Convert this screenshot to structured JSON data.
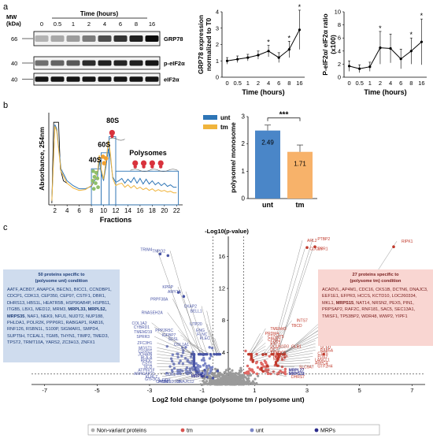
{
  "panel_labels": {
    "a": "a",
    "b": "b",
    "c": "c"
  },
  "western": {
    "mw_label": "MW\n(kDa)",
    "time_title": "Time (hours)",
    "time_points": [
      "0",
      "0.5",
      "1",
      "2",
      "4",
      "6",
      "8",
      "16"
    ],
    "bands": [
      {
        "mw": "66",
        "protein": "GRP78",
        "intensity": [
          0.25,
          0.3,
          0.35,
          0.5,
          0.7,
          0.82,
          0.9,
          1.0
        ]
      },
      {
        "mw": "40",
        "protein": "p-eIF2α",
        "intensity": [
          0.55,
          0.6,
          0.65,
          0.85,
          0.9,
          0.88,
          0.9,
          0.95
        ]
      },
      {
        "mw": "40",
        "protein": "eIF2α",
        "intensity": [
          0.95,
          0.95,
          0.95,
          0.95,
          0.95,
          0.95,
          0.95,
          0.95
        ]
      }
    ]
  },
  "chart_data": [
    {
      "type": "line",
      "ylabel": "GRP78 expression\nnormalized to T0",
      "xlabel": "Time (hours)",
      "categories": [
        "0",
        "0.5",
        "1",
        "2",
        "4",
        "6",
        "8",
        "16"
      ],
      "values": [
        1.0,
        1.1,
        1.2,
        1.35,
        1.6,
        1.2,
        1.7,
        2.9
      ],
      "errors": [
        0.2,
        0.2,
        0.2,
        0.25,
        0.35,
        0.3,
        0.5,
        1.2
      ],
      "significant": [
        false,
        false,
        false,
        false,
        true,
        false,
        true,
        true
      ],
      "yticks": [
        "0",
        "1",
        "2",
        "3",
        "4"
      ],
      "ylim": [
        0,
        4
      ]
    },
    {
      "type": "line",
      "ylabel": "P-eIF2α/ eIF2α ratio\n(x100)",
      "xlabel": "Time (hours)",
      "categories": [
        "0",
        "0.5",
        "1",
        "2",
        "4",
        "6",
        "8",
        "16"
      ],
      "values": [
        1.7,
        1.3,
        1.6,
        4.5,
        4.4,
        2.8,
        4.0,
        5.4
      ],
      "errors": [
        0.8,
        0.6,
        0.7,
        2.5,
        2.2,
        1.5,
        2.0,
        3.5
      ],
      "significant": [
        false,
        false,
        false,
        true,
        false,
        false,
        true,
        true
      ],
      "yticks": [
        "0",
        "2",
        "4",
        "6",
        "8",
        "10"
      ],
      "ylim": [
        0,
        10
      ]
    },
    {
      "type": "line",
      "ylabel": "Absorbance, 254nm",
      "xlabel": "Fractions",
      "xticks": [
        "2",
        "4",
        "6",
        "8",
        "10",
        "12",
        "14",
        "16",
        "18",
        "20",
        "22"
      ],
      "xlim": [
        1,
        23
      ],
      "ylim": [
        0,
        1.15
      ],
      "series": [
        {
          "name": "unt",
          "color": "#2e75b6",
          "x": [
            1.5,
            2,
            2.3,
            3,
            4,
            5,
            6,
            7,
            8,
            8.5,
            9,
            9.3,
            9.6,
            10,
            10.4,
            10.8,
            11.1,
            11.5,
            12,
            12.5,
            13,
            13.5,
            14,
            14.5,
            15,
            15.5,
            16,
            16.5,
            17,
            17.5,
            18,
            18.5,
            19,
            19.5,
            20,
            20.5,
            21,
            21.5,
            22
          ],
          "y": [
            0.05,
            1.0,
            0.95,
            0.45,
            0.3,
            0.24,
            0.2,
            0.2,
            0.23,
            0.3,
            0.35,
            0.55,
            0.4,
            0.3,
            0.48,
            0.7,
            0.6,
            0.35,
            0.28,
            0.3,
            0.33,
            0.27,
            0.32,
            0.28,
            0.34,
            0.27,
            0.33,
            0.26,
            0.32,
            0.26,
            0.3,
            0.25,
            0.28,
            0.24,
            0.27,
            0.23,
            0.25,
            0.22,
            0.22
          ]
        },
        {
          "name": "tm",
          "color": "#f0b43c",
          "x": [
            1.5,
            2,
            2.3,
            3,
            4,
            5,
            6,
            7,
            8,
            8.5,
            9,
            9.3,
            9.6,
            10,
            10.4,
            10.8,
            11.1,
            11.5,
            12,
            12.5,
            13,
            13.5,
            14,
            14.5,
            15,
            15.5,
            16,
            16.5,
            17,
            17.5,
            18,
            18.5,
            19,
            19.5,
            20,
            20.5,
            21,
            21.5,
            22
          ],
          "y": [
            0.05,
            0.98,
            0.92,
            0.42,
            0.27,
            0.21,
            0.18,
            0.19,
            0.24,
            0.32,
            0.4,
            0.62,
            0.45,
            0.32,
            0.55,
            0.8,
            0.66,
            0.33,
            0.24,
            0.26,
            0.27,
            0.22,
            0.25,
            0.21,
            0.24,
            0.2,
            0.22,
            0.19,
            0.21,
            0.18,
            0.2,
            0.17,
            0.19,
            0.17,
            0.18,
            0.16,
            0.17,
            0.15,
            0.15
          ]
        }
      ],
      "annotations": [
        "40S",
        "60S",
        "80S",
        "Polysomes"
      ]
    },
    {
      "type": "bar",
      "ylabel": "polysome/ monosome",
      "categories": [
        "unt",
        "tm"
      ],
      "values": [
        2.49,
        1.71
      ],
      "value_labels": [
        "2.49",
        "1.71"
      ],
      "errors": [
        0.2,
        0.25
      ],
      "colors": [
        "#4a86c8",
        "#f7b26a"
      ],
      "significance": "***",
      "yticks": [
        "0",
        "1",
        "2",
        "3"
      ],
      "ylim": [
        0,
        3
      ]
    },
    {
      "type": "scatter",
      "xlabel": "Log2 fold change (polysome tm / polysome unt)",
      "ylabel": "-Log10(p-value)",
      "xticks": [
        "-7",
        "-5",
        "-3",
        "-1",
        "1",
        "3",
        "5",
        "7"
      ],
      "yticks": [
        "4",
        "8",
        "12",
        "16"
      ],
      "xlim": [
        -7.5,
        7.5
      ],
      "ylim": [
        0,
        18.5
      ],
      "legend": [
        {
          "name": "Non-variant proteins",
          "color": "#b0b0b0"
        },
        {
          "name": "tm",
          "color": "#d9534f"
        },
        {
          "name": "unt",
          "color": "#7b86c6"
        },
        {
          "name": "MRPs",
          "color": "#2b2b8c"
        }
      ],
      "labeled_points_unt": [
        {
          "label": "TRIM4",
          "x": -2.9,
          "y": 16.5
        },
        {
          "label": "TNPO2",
          "x": -2.4,
          "y": 16.3
        },
        {
          "label": "KPRP",
          "x": -2.1,
          "y": 11.8
        },
        {
          "label": "AMY1A",
          "x": -1.8,
          "y": 11.2
        },
        {
          "label": "PRPF38A",
          "x": -2.3,
          "y": 10.3
        },
        {
          "label": "CKAP2",
          "x": -1.2,
          "y": 9.4
        },
        {
          "label": "RNASEH2A",
          "x": -2.5,
          "y": 8.6
        },
        {
          "label": "BELL1",
          "x": -1.0,
          "y": 8.8
        },
        {
          "label": "COL1A2",
          "x": -3.1,
          "y": 7.3
        },
        {
          "label": "UTP20",
          "x": -1.0,
          "y": 7.2
        },
        {
          "label": "CYBRD1",
          "x": -3.0,
          "y": 6.8
        },
        {
          "label": "PPP2R5C",
          "x": -2.1,
          "y": 6.4
        },
        {
          "label": "TMEM219",
          "x": -2.9,
          "y": 6.2
        },
        {
          "label": "IGFBP7",
          "x": -2.0,
          "y": 5.8
        },
        {
          "label": "SPRR3",
          "x": -3.0,
          "y": 5.6
        },
        {
          "label": "SDSL",
          "x": -1.9,
          "y": 5.3
        },
        {
          "label": "ZFC3H1",
          "x": -2.9,
          "y": 4.8
        },
        {
          "label": "COL1A1",
          "x": -1.5,
          "y": 4.6
        },
        {
          "label": "MGST1",
          "x": -2.9,
          "y": 4.2
        },
        {
          "label": "C1orf21",
          "x": -2.9,
          "y": 3.8
        },
        {
          "label": "JCHAIN",
          "x": -2.9,
          "y": 3.4
        },
        {
          "label": "HLA-A",
          "x": -2.9,
          "y": 3.0
        },
        {
          "label": "RHOC",
          "x": -2.9,
          "y": 2.6
        },
        {
          "label": "CST1",
          "x": -2.9,
          "y": 2.2
        },
        {
          "label": "SCD",
          "x": -2.9,
          "y": 1.8
        },
        {
          "label": "ATP6V1F",
          "x": -2.8,
          "y": 1.4
        },
        {
          "label": "ARHGAP21",
          "x": -2.8,
          "y": 1.0
        },
        {
          "label": "KLHL7",
          "x": -2.7,
          "y": 0.6
        },
        {
          "label": "GTF3C5",
          "x": -2.6,
          "y": 0.3
        },
        {
          "label": "DDX",
          "x": -2.2,
          "y": 0.2
        },
        {
          "label": "CDK2",
          "x": -2.0,
          "y": 0.9
        },
        {
          "label": "PIGM",
          "x": -2.3,
          "y": -0.1
        },
        {
          "label": "CACTIN",
          "x": -2.2,
          "y": -0.5
        },
        {
          "label": "TBC1D10B",
          "x": -1.8,
          "y": -0.7
        },
        {
          "label": "DNAJC12",
          "x": -1.3,
          "y": -0.9
        },
        {
          "label": "ENG",
          "x": -0.9,
          "y": 6.4
        },
        {
          "label": "FLNC",
          "x": -0.8,
          "y": 5.9
        },
        {
          "label": "PLEC",
          "x": -0.7,
          "y": 5.4
        },
        {
          "label": "MRPS4",
          "x": -0.9,
          "y": 0.7
        }
      ],
      "labeled_points_tm": [
        {
          "label": "ARL2",
          "x": 3.0,
          "y": 17.6
        },
        {
          "label": "PTBP2",
          "x": 3.4,
          "y": 17.8
        },
        {
          "label": "CDC26",
          "x": 3.1,
          "y": 16.6
        },
        {
          "label": "RYR1",
          "x": 3.4,
          "y": 16.6
        },
        {
          "label": "RIPK1",
          "x": 6.6,
          "y": 17.5
        },
        {
          "label": "LAMTOR4",
          "x": 3.9,
          "y": 8.0
        },
        {
          "label": "INTS7",
          "x": 2.6,
          "y": 7.6
        },
        {
          "label": "HERPUD1",
          "x": 3.8,
          "y": 7.3
        },
        {
          "label": "TBCD",
          "x": 2.4,
          "y": 7.0
        },
        {
          "label": "ARHAR1",
          "x": 3.8,
          "y": 6.8
        },
        {
          "label": "TMEM43",
          "x": 1.6,
          "y": 6.6
        },
        {
          "label": "PLA2G15",
          "x": 3.6,
          "y": 6.3
        },
        {
          "label": "PRDM4",
          "x": 1.4,
          "y": 6.0
        },
        {
          "label": "SAMHD1",
          "x": 3.6,
          "y": 5.9
        },
        {
          "label": "C17orf75",
          "x": 1.5,
          "y": 5.6
        },
        {
          "label": "LAMTOR1",
          "x": 3.6,
          "y": 5.5
        },
        {
          "label": "CPNE2",
          "x": 1.5,
          "y": 5.2
        },
        {
          "label": "C1orf109",
          "x": 3.5,
          "y": 5.1
        },
        {
          "label": "ENY2",
          "x": 1.6,
          "y": 4.8
        },
        {
          "label": "RETPB",
          "x": 3.5,
          "y": 4.7
        },
        {
          "label": "DCUN1D3",
          "x": 1.6,
          "y": 4.4
        },
        {
          "label": "GLB1",
          "x": 2.4,
          "y": 4.4
        },
        {
          "label": "SCFD",
          "x": 3.5,
          "y": 4.3
        },
        {
          "label": "DCT",
          "x": 1.6,
          "y": 4.0
        },
        {
          "label": "RAB5A",
          "x": 3.5,
          "y": 3.9
        },
        {
          "label": "TXNDC5",
          "x": 1.6,
          "y": 3.6
        },
        {
          "label": "TXNDC5",
          "x": 1.6,
          "y": 3.6
        },
        {
          "label": "CTBS",
          "x": 3.4,
          "y": 3.5
        },
        {
          "label": "RAB22A",
          "x": 1.7,
          "y": 3.2
        },
        {
          "label": "NOL12",
          "x": 1.7,
          "y": 2.8
        },
        {
          "label": "FDX2",
          "x": 3.4,
          "y": 3.1
        },
        {
          "label": "LANCL1",
          "x": 3.3,
          "y": 2.7
        },
        {
          "label": "ARPC4",
          "x": 3.3,
          "y": 2.3
        },
        {
          "label": "SLC9A7",
          "x": 2.7,
          "y": 1.8
        },
        {
          "label": "GTF2H4",
          "x": 3.4,
          "y": 1.9
        },
        {
          "label": "MRPL27",
          "x": 2.3,
          "y": 1.4
        },
        {
          "label": "MRPS33",
          "x": 2.3,
          "y": 1.0
        },
        {
          "label": "DHRS7",
          "x": 2.4,
          "y": 0.6
        }
      ]
    }
  ],
  "volcano_boxes": {
    "unt": {
      "title": "50 proteins specific to\n(polysome unt) condition",
      "pre": "AATF, ACBD7, ANAPC4, BECN1, BICC1, CCNDBP1, CDCP1, CDK13, CEP350, CEP97, CSTF1, DBR1, DHRS13, HBS1L, HEATR5B, HSP90AB4P, HSPB11, ITGB5, LBX1, MED12, MRM3, ",
      "bold": "MRPL33, MRPL52, MRPS35",
      "post": ", NAF1, NEK9, NFU1, NUDT2, NUP188, PHLDA1, POLR2K, PPP6R1, RABGAP1, RAB16, RNF126, RSBN1L, S100P, SIGMAR1, SMPD4, SUPT5H, TCEAL1, TGM5, THYN1, TIMP2, TMED3, TPST2, TRMT10A, YARS2, ZC3H13, ZNFX1"
    },
    "tm": {
      "title": "27 proteins specific to\n(polysome tm) condition",
      "pre": "ACADVL, AP4M1, CDC16, CKS1B, DCTN6, DNAJC3, EEF1E1, EFPR3, HCCS, KCTD10, LOC260334, MKL1, ",
      "bold": "MRPS15",
      "post": ", NAT14, NRSN2, PEX5, PIN1, PRPSAP2, RAF2C, RNF181, SAC5, SEC13A1, TMISF1, TP53BP2, WDR48, WWP2, YIPF1"
    }
  }
}
